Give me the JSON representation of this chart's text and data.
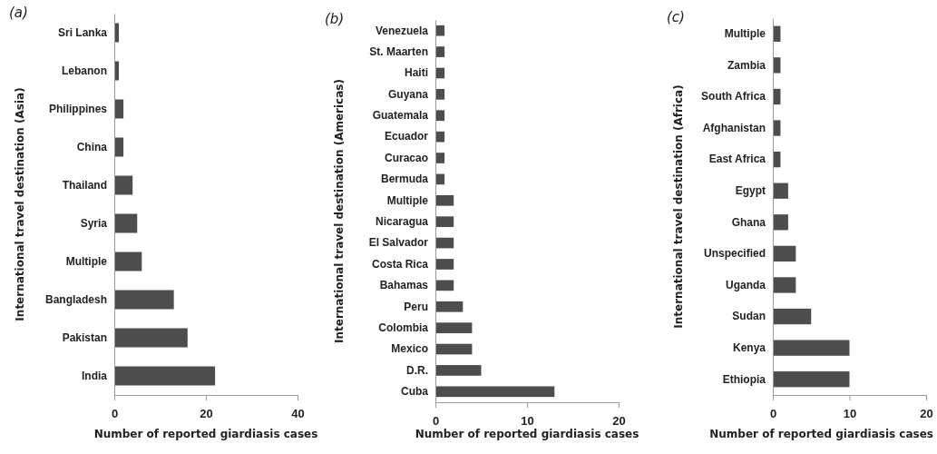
{
  "chart_data": [
    {
      "type": "bar",
      "orientation": "horizontal",
      "title": "(a)",
      "xlabel": "Number of reported giardiasis cases",
      "ylabel": "International travel destination (Asia)",
      "categories": [
        "Sri Lanka",
        "Lebanon",
        "Philippines",
        "China",
        "Thailand",
        "Syria",
        "Multiple",
        "Bangladesh",
        "Pakistan",
        "India"
      ],
      "values": [
        1,
        1,
        2,
        2,
        4,
        5,
        6,
        13,
        16,
        22
      ],
      "color": "#4d4d4d",
      "xlim": [
        0,
        40
      ],
      "xticks": [
        0,
        20,
        40
      ],
      "grid": false
    },
    {
      "type": "bar",
      "orientation": "horizontal",
      "title": "(b)",
      "xlabel": "Number of reported giardiasis cases",
      "ylabel": "International travel destination (Americas)",
      "categories": [
        "Venezuela",
        "St. Maarten",
        "Haiti",
        "Guyana",
        "Guatemala",
        "Ecuador",
        "Curacao",
        "Bermuda",
        "Multiple",
        "Nicaragua",
        "El Salvador",
        "Costa Rica",
        "Bahamas",
        "Peru",
        "Colombia",
        "Mexico",
        "D.R.",
        "Cuba"
      ],
      "values": [
        1,
        1,
        1,
        1,
        1,
        1,
        1,
        1,
        2,
        2,
        2,
        2,
        2,
        3,
        4,
        4,
        5,
        13
      ],
      "color": "#4d4d4d",
      "xlim": [
        0,
        20
      ],
      "xticks": [
        0,
        10,
        20
      ],
      "grid": false
    },
    {
      "type": "bar",
      "orientation": "horizontal",
      "title": "(c)",
      "xlabel": "Number of reported giardiasis cases",
      "ylabel": "International travel destination (Africa)",
      "categories": [
        "Multiple",
        "Zambia",
        "South Africa",
        "Afghanistan",
        "East Africa",
        "Egypt",
        "Ghana",
        "Unspecified",
        "Uganda",
        "Sudan",
        "Kenya",
        "Ethiopia"
      ],
      "values": [
        1,
        1,
        1,
        1,
        1,
        2,
        2,
        3,
        3,
        5,
        10,
        10
      ],
      "color": "#4d4d4d",
      "xlim": [
        0,
        20
      ],
      "xticks": [
        0,
        10,
        20
      ],
      "grid": false
    }
  ]
}
